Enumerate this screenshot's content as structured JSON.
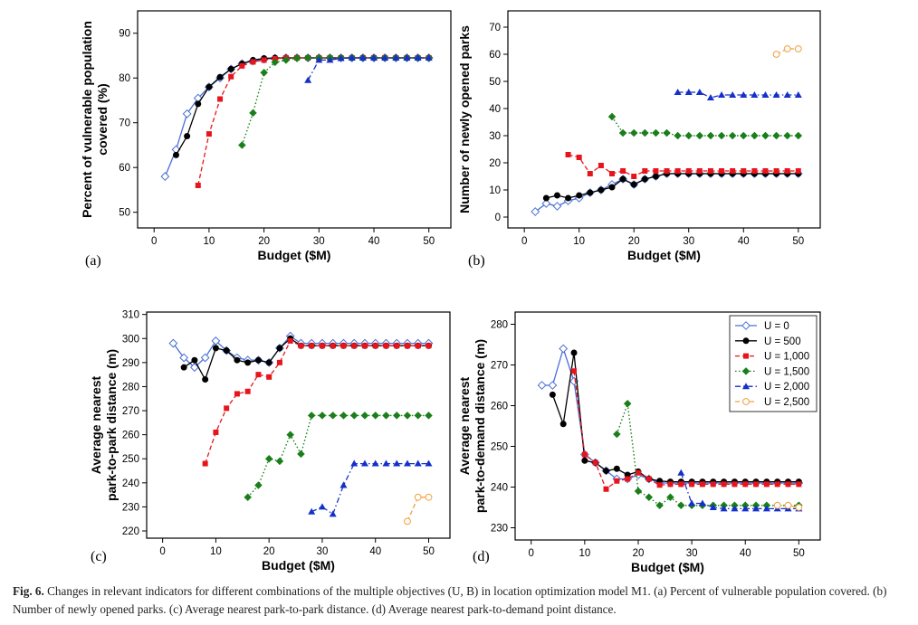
{
  "caption": {
    "label": "Fig. 6.",
    "text": "Changes in relevant indicators for different combinations of the multiple objectives (U, B) in location optimization model M1. (a) Percent of vulnerable population covered. (b) Number of newly opened parks. (c) Average nearest park-to-park distance. (d) Average nearest park-to-demand point distance."
  },
  "series_styles": [
    {
      "name": "U = 0",
      "color": "#4a6fd6",
      "marker": "diamond-open",
      "dash": "solid"
    },
    {
      "name": "U = 500",
      "color": "#000000",
      "marker": "circle",
      "dash": "solid"
    },
    {
      "name": "U = 1,000",
      "color": "#e8141c",
      "marker": "square",
      "dash": "dashed"
    },
    {
      "name": "U = 1,500",
      "color": "#1a7f1a",
      "marker": "diamond",
      "dash": "dotted"
    },
    {
      "name": "U = 2,000",
      "color": "#1530c8",
      "marker": "triangle",
      "dash": "dashdot"
    },
    {
      "name": "U = 2,500",
      "color": "#f0a040",
      "marker": "circle-open",
      "dash": "dashed"
    }
  ],
  "chart_data": [
    {
      "panel": "(a)",
      "type": "line",
      "xlabel": "Budget ($M)",
      "ylabel": "Percent of vulnerable population covered (%)",
      "ylabel_lines": [
        "Percent of vulnerable population",
        "covered (%)"
      ],
      "xlim": [
        -3,
        54
      ],
      "ylim": [
        46.5,
        95
      ],
      "xticks": [
        0,
        10,
        20,
        30,
        40,
        50
      ],
      "yticks": [
        50,
        60,
        70,
        80,
        90
      ],
      "legend": "",
      "series": [
        {
          "name": "U = 0",
          "x": [
            2,
            4,
            6,
            8,
            10,
            12,
            14,
            16,
            18,
            20,
            22,
            24,
            26,
            28,
            30,
            32,
            34,
            36,
            38,
            40,
            42,
            44,
            46,
            48,
            50
          ],
          "y": [
            58,
            64,
            72,
            75.5,
            78,
            80,
            82,
            83.2,
            83.8,
            84.2,
            84.4,
            84.5,
            84.5,
            84.5,
            84.5,
            84.5,
            84.5,
            84.5,
            84.5,
            84.5,
            84.5,
            84.5,
            84.5,
            84.5,
            84.5
          ]
        },
        {
          "name": "U = 500",
          "x": [
            4,
            6,
            8,
            10,
            12,
            14,
            16,
            18,
            20,
            22,
            24,
            26,
            28,
            30,
            32,
            34,
            36,
            38,
            40,
            42,
            44,
            46,
            48,
            50
          ],
          "y": [
            62.8,
            67,
            74.2,
            78,
            80.2,
            82,
            83.2,
            84,
            84.4,
            84.5,
            84.5,
            84.5,
            84.5,
            84.5,
            84.5,
            84.5,
            84.5,
            84.5,
            84.5,
            84.5,
            84.5,
            84.5,
            84.5,
            84.5
          ]
        },
        {
          "name": "U = 1,000",
          "x": [
            8,
            10,
            12,
            14,
            16,
            18,
            20,
            22,
            24,
            26,
            28,
            30,
            32,
            34,
            36,
            38,
            40,
            42,
            44,
            46,
            48,
            50
          ],
          "y": [
            56,
            67.5,
            75.3,
            80.3,
            82.7,
            83.6,
            84,
            84.3,
            84.5,
            84.5,
            84.5,
            84.5,
            84.5,
            84.5,
            84.5,
            84.5,
            84.5,
            84.5,
            84.5,
            84.5,
            84.5,
            84.5
          ]
        },
        {
          "name": "U = 1,500",
          "x": [
            16,
            18,
            20,
            22,
            24,
            26,
            28,
            30,
            32,
            34,
            36,
            38,
            40,
            42,
            44,
            46,
            48,
            50
          ],
          "y": [
            65,
            72.2,
            81.2,
            83.5,
            84,
            84.4,
            84.5,
            84.5,
            84.5,
            84.5,
            84.5,
            84.5,
            84.5,
            84.5,
            84.5,
            84.5,
            84.5,
            84.5
          ]
        },
        {
          "name": "U = 2,000",
          "x": [
            28,
            30,
            32,
            34,
            36,
            38,
            40,
            42,
            44,
            46,
            48,
            50
          ],
          "y": [
            79.5,
            84,
            84,
            84.4,
            84.5,
            84.5,
            84.5,
            84.5,
            84.5,
            84.5,
            84.5,
            84.5
          ]
        }
      ]
    },
    {
      "panel": "(b)",
      "type": "line",
      "xlabel": "Budget ($M)",
      "ylabel": "Number of newly opened parks",
      "ylabel_lines": [
        "Number of newly opened parks"
      ],
      "xlim": [
        -3,
        54
      ],
      "ylim": [
        -4,
        76
      ],
      "xticks": [
        0,
        10,
        20,
        30,
        40,
        50
      ],
      "yticks": [
        0,
        10,
        20,
        30,
        40,
        50,
        60,
        70
      ],
      "legend": "",
      "series": [
        {
          "name": "U = 0",
          "x": [
            2,
            4,
            6,
            8,
            10,
            12,
            14,
            16,
            18,
            20,
            22,
            24,
            26,
            28,
            30,
            32,
            34,
            36,
            38,
            40,
            42,
            44,
            46,
            48,
            50
          ],
          "y": [
            2,
            5,
            4,
            6,
            7,
            9,
            10,
            12,
            14,
            12,
            14,
            15,
            16,
            16,
            16,
            16,
            16,
            16,
            16,
            16,
            16,
            16,
            16,
            16,
            16
          ]
        },
        {
          "name": "U = 500",
          "x": [
            4,
            6,
            8,
            10,
            12,
            14,
            16,
            18,
            20,
            22,
            24,
            26,
            28,
            30,
            32,
            34,
            36,
            38,
            40,
            42,
            44,
            46,
            48,
            50
          ],
          "y": [
            7,
            8,
            7,
            8,
            9,
            10,
            11,
            14,
            12,
            14,
            15,
            16,
            16,
            16,
            16,
            16,
            16,
            16,
            16,
            16,
            16,
            16,
            16,
            16
          ]
        },
        {
          "name": "U = 1,000",
          "x": [
            8,
            10,
            12,
            14,
            16,
            18,
            20,
            22,
            24,
            26,
            28,
            30,
            32,
            34,
            36,
            38,
            40,
            42,
            44,
            46,
            48,
            50
          ],
          "y": [
            23,
            22,
            16,
            19,
            16,
            17,
            15,
            17,
            17,
            17,
            17,
            17,
            17,
            17,
            17,
            17,
            17,
            17,
            17,
            17,
            17,
            17
          ]
        },
        {
          "name": "U = 1,500",
          "x": [
            16,
            18,
            20,
            22,
            24,
            26,
            28,
            30,
            32,
            34,
            36,
            38,
            40,
            42,
            44,
            46,
            48,
            50
          ],
          "y": [
            37,
            31,
            31,
            31,
            31,
            31,
            30,
            30,
            30,
            30,
            30,
            30,
            30,
            30,
            30,
            30,
            30,
            30
          ]
        },
        {
          "name": "U = 2,000",
          "x": [
            28,
            30,
            32,
            34,
            36,
            38,
            40,
            42,
            44,
            46,
            48,
            50
          ],
          "y": [
            46,
            46,
            46,
            44,
            45,
            45,
            45,
            45,
            45,
            45,
            45,
            45
          ]
        },
        {
          "name": "U = 2,500",
          "x": [
            46,
            48,
            50
          ],
          "y": [
            60,
            62,
            62
          ]
        }
      ]
    },
    {
      "panel": "(c)",
      "type": "line",
      "xlabel": "Budget ($M)",
      "ylabel": "Average nearest park-to-park distance (m)",
      "ylabel_lines": [
        "Average nearest",
        "park-to-park distance (m)"
      ],
      "xlim": [
        -3,
        54
      ],
      "ylim": [
        217,
        311
      ],
      "xticks": [
        0,
        10,
        20,
        30,
        40,
        50
      ],
      "yticks": [
        220,
        230,
        240,
        250,
        260,
        270,
        280,
        290,
        300,
        310
      ],
      "legend": "",
      "series": [
        {
          "name": "U = 0",
          "x": [
            2,
            4,
            6,
            8,
            10,
            12,
            14,
            16,
            18,
            20,
            22,
            24,
            26,
            28,
            30,
            32,
            34,
            36,
            38,
            40,
            42,
            44,
            46,
            48,
            50
          ],
          "y": [
            298,
            292,
            288,
            292,
            299,
            295,
            292,
            291,
            291,
            290,
            296,
            301,
            298,
            298,
            298,
            298,
            298,
            298,
            298,
            298,
            298,
            298,
            298,
            298,
            298
          ]
        },
        {
          "name": "U = 500",
          "x": [
            4,
            6,
            8,
            10,
            12,
            14,
            16,
            18,
            20,
            22,
            24,
            26,
            28,
            30,
            32,
            34,
            36,
            38,
            40,
            42,
            44,
            46,
            48,
            50
          ],
          "y": [
            288,
            291,
            283,
            296,
            295,
            291,
            290,
            291,
            290,
            296,
            300,
            297,
            297,
            297,
            297,
            297,
            297,
            297,
            297,
            297,
            297,
            297,
            297,
            297
          ]
        },
        {
          "name": "U = 1,000",
          "x": [
            8,
            10,
            12,
            14,
            16,
            18,
            20,
            22,
            24,
            26,
            28,
            30,
            32,
            34,
            36,
            38,
            40,
            42,
            44,
            46,
            48,
            50
          ],
          "y": [
            248,
            261,
            271,
            277,
            278,
            285,
            284,
            290,
            299,
            297,
            297,
            297,
            297,
            297,
            297,
            297,
            297,
            297,
            297,
            297,
            297,
            297
          ]
        },
        {
          "name": "U = 1,500",
          "x": [
            16,
            18,
            20,
            22,
            24,
            26,
            28,
            30,
            32,
            34,
            36,
            38,
            40,
            42,
            44,
            46,
            48,
            50
          ],
          "y": [
            234,
            239,
            250,
            249,
            260,
            252,
            268,
            268,
            268,
            268,
            268,
            268,
            268,
            268,
            268,
            268,
            268,
            268
          ]
        },
        {
          "name": "U = 2,000",
          "x": [
            28,
            30,
            32,
            34,
            36,
            38,
            40,
            42,
            44,
            46,
            48,
            50
          ],
          "y": [
            228,
            230,
            227,
            239,
            248,
            248,
            248,
            248,
            248,
            248,
            248,
            248
          ]
        },
        {
          "name": "U = 2,500",
          "x": [
            46,
            48,
            50
          ],
          "y": [
            224,
            234,
            234
          ]
        }
      ]
    },
    {
      "panel": "(d)",
      "type": "line",
      "xlabel": "Budget ($M)",
      "ylabel": "Average nearest park-to-demand distance (m)",
      "ylabel_lines": [
        "Average nearest",
        "park-to-demand distance (m)"
      ],
      "xlim": [
        -3,
        54
      ],
      "ylim": [
        227,
        283
      ],
      "xticks": [
        0,
        10,
        20,
        30,
        40,
        50
      ],
      "yticks": [
        230,
        240,
        250,
        260,
        270,
        280
      ],
      "legend": "top-right",
      "series": [
        {
          "name": "U = 0",
          "x": [
            2,
            4,
            6,
            8,
            10,
            12,
            14,
            16,
            18,
            20,
            22,
            24,
            26,
            28,
            30,
            32,
            34,
            36,
            38,
            40,
            42,
            44,
            46,
            48,
            50
          ],
          "y": [
            265,
            265,
            274,
            266,
            248,
            246,
            244,
            242,
            242,
            243,
            242,
            241,
            241,
            241,
            241,
            241,
            241,
            241,
            241,
            241,
            241,
            241,
            241,
            241,
            241
          ]
        },
        {
          "name": "U = 500",
          "x": [
            4,
            6,
            8,
            10,
            12,
            14,
            16,
            18,
            20,
            22,
            24,
            26,
            28,
            30,
            32,
            34,
            36,
            38,
            40,
            42,
            44,
            46,
            48,
            50
          ],
          "y": [
            262.7,
            255.5,
            273,
            246.5,
            246,
            244,
            244.5,
            243,
            243.8,
            242,
            241.5,
            241.3,
            241.3,
            241.3,
            241.3,
            241.3,
            241.3,
            241.3,
            241.3,
            241.3,
            241.3,
            241.3,
            241.3,
            241.3
          ]
        },
        {
          "name": "U = 1,000",
          "x": [
            8,
            10,
            12,
            14,
            16,
            18,
            20,
            22,
            24,
            26,
            28,
            30,
            32,
            34,
            36,
            38,
            40,
            42,
            44,
            46,
            48,
            50
          ],
          "y": [
            268.5,
            248,
            246,
            239.5,
            241.5,
            242,
            243.5,
            242,
            240.5,
            240.7,
            240.7,
            240.7,
            240.7,
            240.7,
            240.7,
            240.7,
            240.7,
            240.7,
            240.7,
            240.7,
            240.7,
            240.7
          ]
        },
        {
          "name": "U = 1,500",
          "x": [
            16,
            18,
            20,
            22,
            24,
            26,
            28,
            30,
            32,
            34,
            36,
            38,
            40,
            42,
            44,
            46,
            48,
            50
          ],
          "y": [
            253,
            260.5,
            239,
            237.5,
            235.5,
            237.5,
            235.5,
            235.5,
            235.5,
            235.5,
            235.5,
            235.5,
            235.5,
            235.5,
            235.5,
            235.5,
            235.5,
            235.5
          ]
        },
        {
          "name": "U = 2,000",
          "x": [
            28,
            30,
            32,
            34,
            36,
            38,
            40,
            42,
            44,
            46,
            48,
            50
          ],
          "y": [
            243.5,
            236,
            236,
            235,
            234.7,
            234.7,
            234.7,
            234.7,
            234.7,
            234.7,
            234.7,
            234.7
          ]
        },
        {
          "name": "U = 2,500",
          "x": [
            46,
            48,
            50
          ],
          "y": [
            235.5,
            235.5,
            235
          ]
        }
      ]
    }
  ]
}
